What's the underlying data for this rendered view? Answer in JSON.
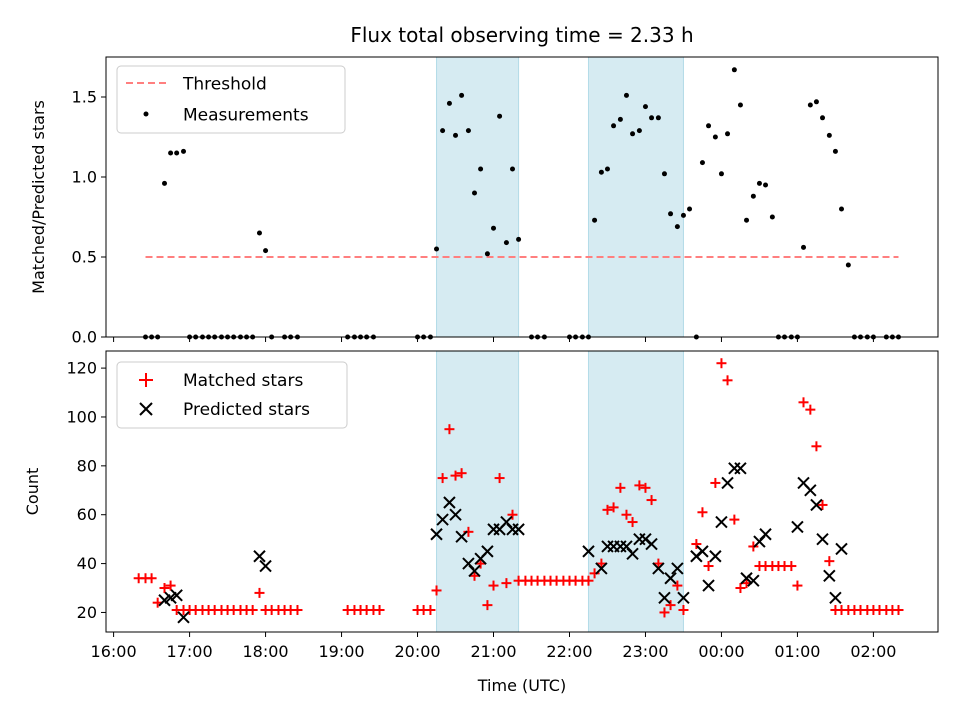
{
  "figure": {
    "title": "Flux total observing time = 2.33 h"
  },
  "colors": {
    "threshold": "#ff7f7f",
    "measurement": "#000000",
    "matched": "#ff0000",
    "predicted": "#000000",
    "shade": "#add8e6"
  },
  "chart_data": [
    {
      "type": "scatter",
      "ylabel": "Matched/Predicted stars",
      "ylim": [
        0,
        1.75
      ],
      "yticks": [
        0.0,
        0.5,
        1.0,
        1.5
      ],
      "ytick_labels": [
        "0.0",
        "0.5",
        "1.0",
        "1.5"
      ],
      "legend_position": "top-left",
      "shaded_intervals": [
        [
          20.25,
          21.33
        ],
        [
          22.25,
          23.5
        ]
      ],
      "series": [
        {
          "name": "Threshold",
          "style": "dashed-line",
          "x": [
            16.42,
            26.33
          ],
          "y": [
            0.5,
            0.5
          ]
        },
        {
          "name": "Measurements",
          "style": "dot",
          "x": [
            16.42,
            16.5,
            16.58,
            16.67,
            16.75,
            16.83,
            16.92,
            17.0,
            17.08,
            17.17,
            17.25,
            17.33,
            17.42,
            17.5,
            17.58,
            17.67,
            17.75,
            17.83,
            17.92,
            18.0,
            18.08,
            18.25,
            18.33,
            18.42,
            19.08,
            19.17,
            19.25,
            19.33,
            19.42,
            20.0,
            20.08,
            20.17,
            20.25,
            20.33,
            20.42,
            20.5,
            20.58,
            20.67,
            20.75,
            20.83,
            20.92,
            21.0,
            21.08,
            21.17,
            21.25,
            21.33,
            21.5,
            21.58,
            21.67,
            22.0,
            22.08,
            22.17,
            22.25,
            22.33,
            22.42,
            22.5,
            22.58,
            22.67,
            22.75,
            22.83,
            22.92,
            23.0,
            23.08,
            23.17,
            23.25,
            23.33,
            23.42,
            23.5,
            23.58,
            23.67,
            23.75,
            23.83,
            23.92,
            24.0,
            24.08,
            24.17,
            24.25,
            24.33,
            24.42,
            24.5,
            24.58,
            24.67,
            24.75,
            24.83,
            24.92,
            25.0,
            25.08,
            25.17,
            25.25,
            25.33,
            25.42,
            25.5,
            25.58,
            25.67,
            25.75,
            25.83,
            25.92,
            26.0,
            26.17,
            26.25,
            26.33
          ],
          "y": [
            0,
            0,
            0,
            0.96,
            1.15,
            1.15,
            1.16,
            0,
            0,
            0,
            0,
            0,
            0,
            0,
            0,
            0,
            0,
            0,
            0.65,
            0.54,
            0,
            0,
            0,
            0,
            0,
            0,
            0,
            0,
            0,
            0,
            0,
            0,
            0.55,
            1.29,
            1.46,
            1.26,
            1.51,
            1.29,
            0.9,
            1.05,
            0.52,
            0.68,
            1.38,
            0.59,
            1.05,
            0.61,
            0,
            0,
            0,
            0,
            0,
            0,
            0,
            0.73,
            1.03,
            1.05,
            1.32,
            1.36,
            1.51,
            1.27,
            1.29,
            1.44,
            1.37,
            1.37,
            1.02,
            0.77,
            0.69,
            0.76,
            0.8,
            0,
            1.09,
            1.32,
            1.25,
            1.02,
            1.27,
            1.67,
            1.45,
            0.73,
            0.88,
            0.96,
            0.95,
            0.75,
            0,
            0,
            0,
            0,
            0.56,
            1.45,
            1.47,
            1.37,
            1.26,
            1.16,
            0.8,
            0.45,
            0,
            0,
            0,
            0,
            0,
            0,
            0
          ]
        }
      ]
    },
    {
      "type": "scatter",
      "xlabel": "Time (UTC)",
      "ylabel": "Count",
      "xlim": [
        15.9,
        26.85
      ],
      "ylim": [
        12,
        127
      ],
      "xticks": [
        16,
        17,
        18,
        19,
        20,
        21,
        22,
        23,
        24,
        25,
        26
      ],
      "xtick_labels": [
        "16:00",
        "17:00",
        "18:00",
        "19:00",
        "20:00",
        "21:00",
        "22:00",
        "23:00",
        "00:00",
        "01:00",
        "02:00"
      ],
      "yticks": [
        20,
        40,
        60,
        80,
        100,
        120
      ],
      "ytick_labels": [
        "20",
        "40",
        "60",
        "80",
        "100",
        "120"
      ],
      "legend_position": "top-left",
      "shaded_intervals": [
        [
          20.25,
          21.33
        ],
        [
          22.25,
          23.5
        ]
      ],
      "series": [
        {
          "name": "Matched stars",
          "marker": "plus",
          "x": [
            16.33,
            16.42,
            16.5,
            16.58,
            16.67,
            16.75,
            16.83,
            16.92,
            17.0,
            17.08,
            17.17,
            17.25,
            17.33,
            17.42,
            17.5,
            17.58,
            17.67,
            17.75,
            17.83,
            17.92,
            18.0,
            18.08,
            18.17,
            18.25,
            18.33,
            18.42,
            19.08,
            19.17,
            19.25,
            19.33,
            19.42,
            19.5,
            20.0,
            20.08,
            20.17,
            20.25,
            20.33,
            20.42,
            20.5,
            20.58,
            20.67,
            20.75,
            20.83,
            20.92,
            21.0,
            21.08,
            21.17,
            21.25,
            21.33,
            21.42,
            21.5,
            21.58,
            21.67,
            21.75,
            21.83,
            21.92,
            22.0,
            22.08,
            22.17,
            22.25,
            22.33,
            22.42,
            22.5,
            22.58,
            22.67,
            22.75,
            22.83,
            22.92,
            23.0,
            23.08,
            23.17,
            23.25,
            23.33,
            23.42,
            23.5,
            23.67,
            23.75,
            23.83,
            23.92,
            24.0,
            24.08,
            24.17,
            24.25,
            24.33,
            24.42,
            24.5,
            24.58,
            24.67,
            24.75,
            24.83,
            24.92,
            25.0,
            25.08,
            25.17,
            25.25,
            25.33,
            25.42,
            25.5,
            25.58,
            25.67,
            25.75,
            25.83,
            25.92,
            26.0,
            26.08,
            26.17,
            26.25,
            26.33
          ],
          "y": [
            34,
            34,
            34,
            24,
            30,
            31,
            21,
            21,
            21,
            21,
            21,
            21,
            21,
            21,
            21,
            21,
            21,
            21,
            21,
            28,
            21,
            21,
            21,
            21,
            21,
            21,
            21,
            21,
            21,
            21,
            21,
            21,
            21,
            21,
            21,
            29,
            75,
            95,
            76,
            77,
            53,
            35,
            40,
            23,
            31,
            75,
            32,
            60,
            33,
            33,
            33,
            33,
            33,
            33,
            33,
            33,
            33,
            33,
            33,
            33,
            36,
            40,
            62,
            63,
            71,
            60,
            57,
            72,
            71,
            66,
            40,
            20,
            23,
            31,
            21,
            48,
            61,
            39,
            73,
            122,
            115,
            58,
            30,
            32,
            47,
            39,
            39,
            39,
            39,
            39,
            39,
            31,
            106,
            103,
            88,
            64,
            41,
            21,
            21,
            21,
            21,
            21,
            21,
            21,
            21,
            21,
            21,
            21
          ]
        },
        {
          "name": "Predicted stars",
          "marker": "x",
          "x": [
            16.67,
            16.75,
            16.83,
            16.92,
            17.92,
            18.0,
            20.25,
            20.33,
            20.42,
            20.5,
            20.58,
            20.67,
            20.75,
            20.83,
            20.92,
            21.0,
            21.08,
            21.17,
            21.25,
            21.33,
            22.25,
            22.42,
            22.5,
            22.58,
            22.67,
            22.75,
            22.83,
            22.92,
            23.0,
            23.08,
            23.17,
            23.25,
            23.33,
            23.42,
            23.5,
            23.67,
            23.75,
            23.83,
            23.92,
            24.0,
            24.08,
            24.17,
            24.25,
            24.33,
            24.42,
            24.5,
            24.58,
            25.0,
            25.08,
            25.17,
            25.25,
            25.33,
            25.42,
            25.5,
            25.58
          ],
          "y": [
            25,
            26,
            27,
            18,
            43,
            39,
            52,
            58,
            65,
            60,
            51,
            40,
            37,
            42,
            45,
            54,
            54,
            57,
            54,
            54,
            45,
            38,
            47,
            47,
            47,
            47,
            44,
            50,
            50,
            48,
            38,
            26,
            34,
            38,
            26,
            43,
            45,
            31,
            43,
            57,
            73,
            79,
            79,
            34,
            33,
            49,
            52,
            55,
            73,
            70,
            64,
            50,
            35,
            26,
            46
          ]
        }
      ]
    }
  ]
}
